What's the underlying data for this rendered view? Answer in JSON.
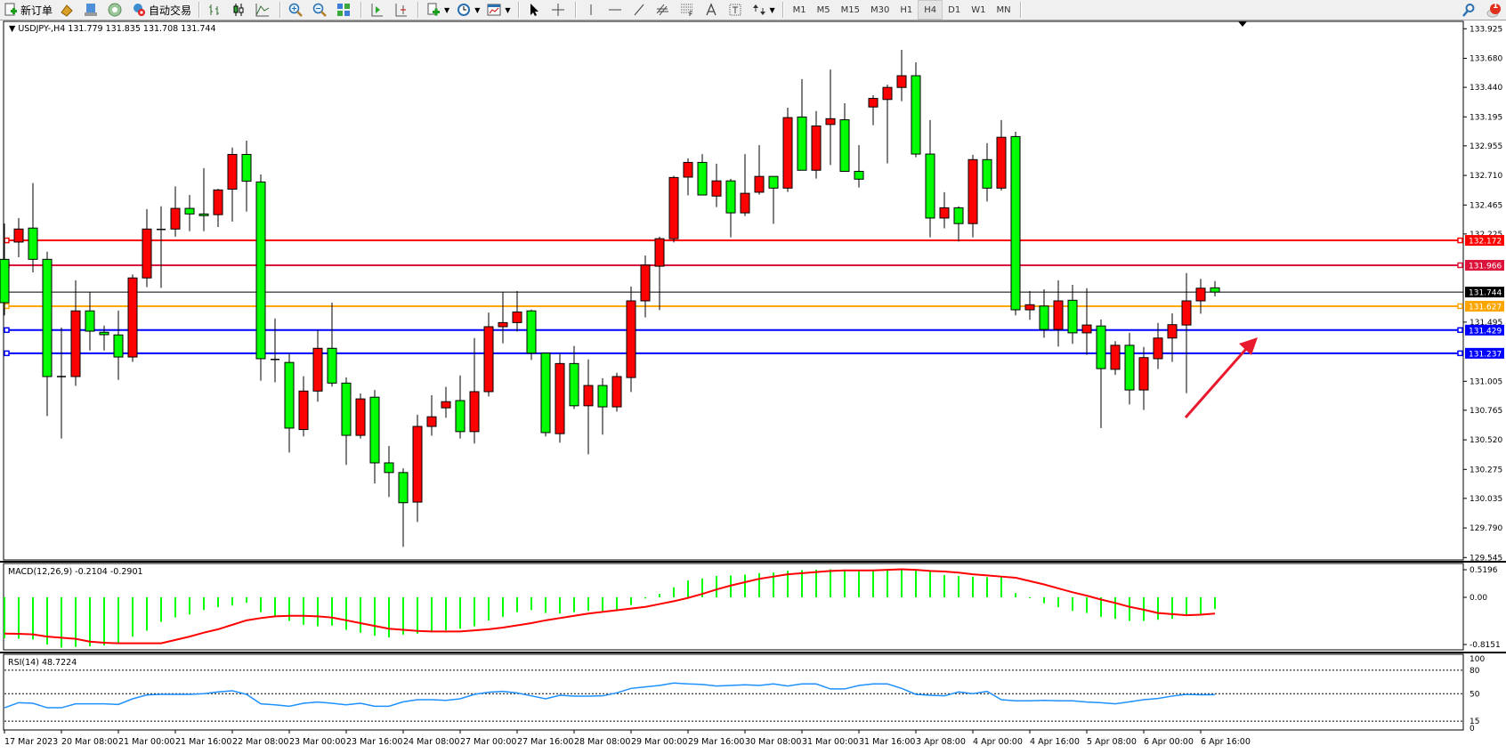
{
  "toolbar": {
    "new_order_label": "新订单",
    "auto_trading_label": "自动交易",
    "timeframes": [
      "M1",
      "M5",
      "M15",
      "M30",
      "H1",
      "H4",
      "D1",
      "W1",
      "MN"
    ],
    "active_timeframe": "H4",
    "notification_count": "1"
  },
  "chart_header": {
    "symbol": "USDJPY-,H4",
    "ohlc": "131.779 131.835 131.708 131.744"
  },
  "price_axis": {
    "labels": [
      "133.925",
      "133.680",
      "133.440",
      "133.195",
      "132.955",
      "132.710",
      "132.465",
      "132.225",
      "131.495",
      "131.005",
      "130.765",
      "130.520",
      "130.275",
      "130.035",
      "129.790",
      "129.545"
    ],
    "range": [
      129.545,
      133.925
    ]
  },
  "levels": [
    {
      "price": 132.172,
      "label": "132.172",
      "color": "#ff0000"
    },
    {
      "price": 131.966,
      "label": "131.966",
      "color": "#dc143c"
    },
    {
      "price": 131.627,
      "label": "131.627",
      "color": "#ffa500"
    },
    {
      "price": 131.429,
      "label": "131.429",
      "color": "#0000ff"
    },
    {
      "price": 131.237,
      "label": "131.237",
      "color": "#0000ff"
    }
  ],
  "current_price": {
    "price": 131.744,
    "label": "131.744"
  },
  "colors": {
    "bull": "#ff0000",
    "bear": "#00ff00",
    "macd_hist": "#00ff00",
    "macd_signal": "#ff0000",
    "rsi": "#1e90ff",
    "arrow": "#e8192c"
  },
  "chart_data": {
    "type": "candlestick",
    "ohlc_order": [
      "open",
      "high",
      "low",
      "close"
    ],
    "candles": [
      [
        132.015,
        132.311,
        131.551,
        131.656
      ],
      [
        132.158,
        132.357,
        132.032,
        132.266
      ],
      [
        132.274,
        132.647,
        131.907,
        132.015
      ],
      [
        132.015,
        132.078,
        130.717,
        131.044
      ],
      [
        131.044,
        131.451,
        130.531,
        131.044
      ],
      [
        131.044,
        131.841,
        130.967,
        131.588
      ],
      [
        131.588,
        131.742,
        131.26,
        131.42
      ],
      [
        131.411,
        131.466,
        131.26,
        131.391
      ],
      [
        131.389,
        131.591,
        131.016,
        131.206
      ],
      [
        131.206,
        131.89,
        131.166,
        131.861
      ],
      [
        131.861,
        132.431,
        131.785,
        132.266
      ],
      [
        132.263,
        132.454,
        131.779,
        132.263
      ],
      [
        132.266,
        132.619,
        132.203,
        132.437
      ],
      [
        132.437,
        132.548,
        132.249,
        132.391
      ],
      [
        132.391,
        132.77,
        132.249,
        132.377
      ],
      [
        132.385,
        132.599,
        132.283,
        132.59
      ],
      [
        132.596,
        132.941,
        132.328,
        132.884
      ],
      [
        132.884,
        132.998,
        132.411,
        132.662
      ],
      [
        132.656,
        132.719,
        131.01,
        131.192
      ],
      [
        131.186,
        131.525,
        130.996,
        131.186
      ],
      [
        131.161,
        131.235,
        130.415,
        130.617
      ],
      [
        130.605,
        131.047,
        130.548,
        130.924
      ],
      [
        130.924,
        131.429,
        130.836,
        131.278
      ],
      [
        131.278,
        131.656,
        130.961,
        130.99
      ],
      [
        130.99,
        131.038,
        130.312,
        130.557
      ],
      [
        130.557,
        130.904,
        130.531,
        130.859
      ],
      [
        130.873,
        130.933,
        130.158,
        130.329
      ],
      [
        130.329,
        130.469,
        130.047,
        130.249
      ],
      [
        130.249,
        130.284,
        129.634,
        129.999
      ],
      [
        130.004,
        130.728,
        129.839,
        130.631
      ],
      [
        130.631,
        130.89,
        130.554,
        130.711
      ],
      [
        130.785,
        130.959,
        130.702,
        130.836
      ],
      [
        130.845,
        131.053,
        130.531,
        130.588
      ],
      [
        130.588,
        131.363,
        130.489,
        130.919
      ],
      [
        130.919,
        131.574,
        130.879,
        131.457
      ],
      [
        131.457,
        131.742,
        131.32,
        131.491
      ],
      [
        131.491,
        131.753,
        131.417,
        131.579
      ],
      [
        131.588,
        131.599,
        131.181,
        131.238
      ],
      [
        131.238,
        131.238,
        130.548,
        130.58
      ],
      [
        130.571,
        131.238,
        130.497,
        131.152
      ],
      [
        131.152,
        131.298,
        130.776,
        130.802
      ],
      [
        130.802,
        131.186,
        130.4,
        130.97
      ],
      [
        130.97,
        131.03,
        130.563,
        130.793
      ],
      [
        130.793,
        131.075,
        130.754,
        131.044
      ],
      [
        131.036,
        131.79,
        130.916,
        131.671
      ],
      [
        131.671,
        132.047,
        131.534,
        131.967
      ],
      [
        131.958,
        132.203,
        131.594,
        132.186
      ],
      [
        132.186,
        132.707,
        132.155,
        132.693
      ],
      [
        132.696,
        132.852,
        132.545,
        132.818
      ],
      [
        132.818,
        132.887,
        132.548,
        132.548
      ],
      [
        132.539,
        132.807,
        132.448,
        132.665
      ],
      [
        132.665,
        132.682,
        132.197,
        132.4
      ],
      [
        132.4,
        132.887,
        132.374,
        132.562
      ],
      [
        132.571,
        132.961,
        132.551,
        132.702
      ],
      [
        132.702,
        132.702,
        132.309,
        132.605
      ],
      [
        132.605,
        133.271,
        132.573,
        133.189
      ],
      [
        133.194,
        133.508,
        132.753,
        132.753
      ],
      [
        132.753,
        133.243,
        132.684,
        133.12
      ],
      [
        133.132,
        133.587,
        132.796,
        133.18
      ],
      [
        133.171,
        133.308,
        132.744,
        132.744
      ],
      [
        132.744,
        132.961,
        132.61,
        132.679
      ],
      [
        133.277,
        133.374,
        133.126,
        133.348
      ],
      [
        133.339,
        133.462,
        132.81,
        133.439
      ],
      [
        133.439,
        133.75,
        133.325,
        133.536
      ],
      [
        133.536,
        133.647,
        132.861,
        132.887
      ],
      [
        132.887,
        133.169,
        132.197,
        132.357
      ],
      [
        132.357,
        132.571,
        132.272,
        132.442
      ],
      [
        132.442,
        132.454,
        132.163,
        132.311
      ],
      [
        132.311,
        132.881,
        132.197,
        132.841
      ],
      [
        132.841,
        132.978,
        132.494,
        132.605
      ],
      [
        132.605,
        133.169,
        132.585,
        133.026
      ],
      [
        133.032,
        133.072,
        131.551,
        131.597
      ],
      [
        131.597,
        131.753,
        131.514,
        131.639
      ],
      [
        131.628,
        131.767,
        131.366,
        131.434
      ],
      [
        131.434,
        131.841,
        131.292,
        131.671
      ],
      [
        131.676,
        131.804,
        131.315,
        131.406
      ],
      [
        131.406,
        131.776,
        131.223,
        131.471
      ],
      [
        131.463,
        131.517,
        130.617,
        131.11
      ],
      [
        131.104,
        131.337,
        131.058,
        131.303
      ],
      [
        131.303,
        131.406,
        130.813,
        130.933
      ],
      [
        130.933,
        131.289,
        130.768,
        131.201
      ],
      [
        131.192,
        131.488,
        131.107,
        131.363
      ],
      [
        131.363,
        131.568,
        131.166,
        131.474
      ],
      [
        131.471,
        131.901,
        130.907,
        131.671
      ],
      [
        131.671,
        131.853,
        131.565,
        131.776
      ],
      [
        131.779,
        131.835,
        131.708,
        131.744
      ]
    ],
    "time_labels": [
      "17 Mar 2023",
      "20 Mar 08:00",
      "21 Mar 00:00",
      "21 Mar 16:00",
      "22 Mar 08:00",
      "23 Mar 00:00",
      "23 Mar 16:00",
      "24 Mar 08:00",
      "27 Mar 00:00",
      "27 Mar 16:00",
      "28 Mar 08:00",
      "29 Mar 00:00",
      "29 Mar 16:00",
      "30 Mar 08:00",
      "31 Mar 00:00",
      "31 Mar 16:00",
      "3 Apr 08:00",
      "4 Apr 00:00",
      "4 Apr 16:00",
      "5 Apr 08:00",
      "6 Apr 00:00",
      "6 Apr 16:00"
    ],
    "macd": {
      "label": "MACD(12,26,9) -0.2104 -0.2901",
      "axis_labels": [
        "0.5196",
        "0.00",
        "-0.8151"
      ],
      "range": [
        -0.8151,
        0.5196
      ],
      "histogram": [
        -0.726,
        -0.737,
        -0.753,
        -0.842,
        -0.895,
        -0.884,
        -0.874,
        -0.858,
        -0.832,
        -0.7,
        -0.595,
        -0.437,
        -0.358,
        -0.305,
        -0.226,
        -0.174,
        -0.147,
        -0.095,
        -0.263,
        -0.332,
        -0.421,
        -0.489,
        -0.516,
        -0.505,
        -0.579,
        -0.632,
        -0.684,
        -0.716,
        -0.663,
        -0.647,
        -0.621,
        -0.589,
        -0.558,
        -0.516,
        -0.411,
        -0.347,
        -0.263,
        -0.226,
        -0.279,
        -0.289,
        -0.263,
        -0.242,
        -0.242,
        -0.226,
        -0.137,
        -0.021,
        0.063,
        0.179,
        0.3,
        0.337,
        0.379,
        0.389,
        0.405,
        0.432,
        0.442,
        0.474,
        0.484,
        0.495,
        0.5,
        0.495,
        0.484,
        0.484,
        0.495,
        0.505,
        0.495,
        0.458,
        0.395,
        0.379,
        0.368,
        0.358,
        0.379,
        0.074,
        -0.016,
        -0.105,
        -0.174,
        -0.242,
        -0.279,
        -0.347,
        -0.384,
        -0.421,
        -0.421,
        -0.4,
        -0.384,
        -0.305,
        -0.295,
        -0.21
      ],
      "signal": [
        -0.647,
        -0.65,
        -0.66,
        -0.7,
        -0.72,
        -0.74,
        -0.79,
        -0.81,
        -0.82,
        -0.82,
        -0.82,
        -0.82,
        -0.76,
        -0.7,
        -0.63,
        -0.57,
        -0.49,
        -0.41,
        -0.37,
        -0.34,
        -0.33,
        -0.33,
        -0.34,
        -0.36,
        -0.41,
        -0.46,
        -0.51,
        -0.56,
        -0.58,
        -0.6,
        -0.61,
        -0.61,
        -0.61,
        -0.59,
        -0.57,
        -0.54,
        -0.5,
        -0.46,
        -0.41,
        -0.37,
        -0.33,
        -0.29,
        -0.26,
        -0.23,
        -0.2,
        -0.17,
        -0.12,
        -0.07,
        -0.01,
        0.06,
        0.14,
        0.21,
        0.27,
        0.33,
        0.37,
        0.41,
        0.43,
        0.45,
        0.47,
        0.48,
        0.48,
        0.48,
        0.49,
        0.5,
        0.49,
        0.47,
        0.46,
        0.44,
        0.41,
        0.39,
        0.37,
        0.35,
        0.29,
        0.23,
        0.16,
        0.09,
        0.03,
        -0.04,
        -0.1,
        -0.17,
        -0.22,
        -0.28,
        -0.3,
        -0.32,
        -0.31,
        -0.29
      ]
    },
    "rsi": {
      "label": "RSI(14) 48.7224",
      "axis_labels": [
        "100",
        "80",
        "50",
        "15",
        "0"
      ],
      "levels": [
        80,
        50,
        15
      ],
      "range": [
        0,
        100
      ],
      "values": [
        32.1,
        38.6,
        37.8,
        32.1,
        32.1,
        37.1,
        37.1,
        37.1,
        36.3,
        43.5,
        48.5,
        49.2,
        49.2,
        49.2,
        50.0,
        52.3,
        53.8,
        49.2,
        37.1,
        35.9,
        34.0,
        37.8,
        39.4,
        37.8,
        35.9,
        37.8,
        34.0,
        34.0,
        39.7,
        42.4,
        42.4,
        41.6,
        43.5,
        49.2,
        51.9,
        53.0,
        51.1,
        47.3,
        43.5,
        48.1,
        47.0,
        47.0,
        47.3,
        51.1,
        56.8,
        58.7,
        60.6,
        63.7,
        62.5,
        61.8,
        59.9,
        60.6,
        61.4,
        60.6,
        62.5,
        59.9,
        62.5,
        62.5,
        56.1,
        56.1,
        60.6,
        62.5,
        62.5,
        56.8,
        49.2,
        48.1,
        47.3,
        52.3,
        50.0,
        53.0,
        42.4,
        40.9,
        40.9,
        41.6,
        40.9,
        40.9,
        39.4,
        38.6,
        37.1,
        39.7,
        42.4,
        43.9,
        47.0,
        49.2,
        48.7,
        48.72
      ]
    }
  }
}
